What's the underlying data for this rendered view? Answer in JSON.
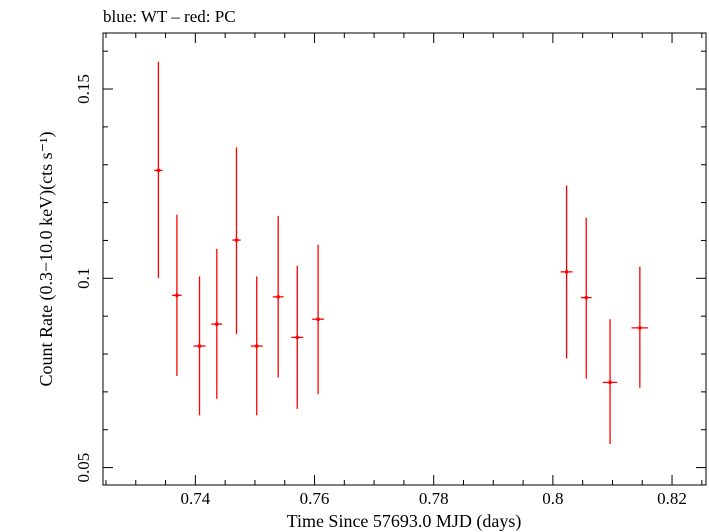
{
  "chart_data": {
    "type": "scatter",
    "title": "blue: WT – red: PC",
    "xlabel": "Time Since 57693.0 MJD (days)",
    "ylabel": "Count Rate (0.3−10.0 keV)(cts s⁻¹)",
    "xlim": [
      0.7245,
      0.8257
    ],
    "ylim": [
      0.0454,
      0.1648
    ],
    "x_ticks": [
      {
        "value": 0.74,
        "label": "0.74"
      },
      {
        "value": 0.76,
        "label": "0.76"
      },
      {
        "value": 0.78,
        "label": "0.78"
      },
      {
        "value": 0.8,
        "label": "0.8"
      },
      {
        "value": 0.82,
        "label": "0.82"
      }
    ],
    "y_ticks": [
      {
        "value": 0.05,
        "label": "0.05"
      },
      {
        "value": 0.1,
        "label": "0.1"
      },
      {
        "value": 0.15,
        "label": "0.15"
      }
    ],
    "series": [
      {
        "color": "#ff0000",
        "points": [
          {
            "x": 0.7338,
            "xerr": 0.0007,
            "y": 0.1285,
            "ylo": 0.1,
            "yhi": 0.1572
          },
          {
            "x": 0.7369,
            "xerr": 0.0008,
            "y": 0.0955,
            "ylo": 0.0742,
            "yhi": 0.1168
          },
          {
            "x": 0.7407,
            "xerr": 0.001,
            "y": 0.0821,
            "ylo": 0.0638,
            "yhi": 0.1005
          },
          {
            "x": 0.7436,
            "xerr": 0.0009,
            "y": 0.0879,
            "ylo": 0.0682,
            "yhi": 0.1078
          },
          {
            "x": 0.7469,
            "xerr": 0.0007,
            "y": 0.1101,
            "ylo": 0.0853,
            "yhi": 0.1346
          },
          {
            "x": 0.7503,
            "xerr": 0.001,
            "y": 0.0821,
            "ylo": 0.0638,
            "yhi": 0.1005
          },
          {
            "x": 0.7539,
            "xerr": 0.0009,
            "y": 0.0951,
            "ylo": 0.0738,
            "yhi": 0.1165
          },
          {
            "x": 0.7571,
            "xerr": 0.001,
            "y": 0.0844,
            "ylo": 0.0655,
            "yhi": 0.1033
          },
          {
            "x": 0.7606,
            "xerr": 0.001,
            "y": 0.0892,
            "ylo": 0.0694,
            "yhi": 0.1089
          },
          {
            "x": 0.8023,
            "xerr": 0.001,
            "y": 0.1017,
            "ylo": 0.0788,
            "yhi": 0.1245
          },
          {
            "x": 0.8056,
            "xerr": 0.0009,
            "y": 0.0949,
            "ylo": 0.0735,
            "yhi": 0.116
          },
          {
            "x": 0.8096,
            "xerr": 0.0012,
            "y": 0.0725,
            "ylo": 0.0562,
            "yhi": 0.0892
          },
          {
            "x": 0.8146,
            "xerr": 0.0014,
            "y": 0.0869,
            "ylo": 0.0711,
            "yhi": 0.1031
          }
        ]
      }
    ],
    "grid": false
  }
}
